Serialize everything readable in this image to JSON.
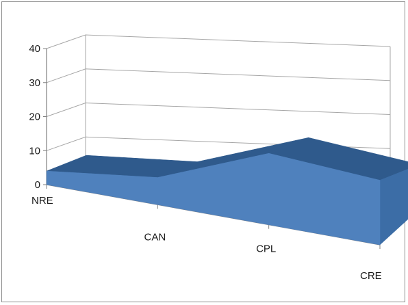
{
  "chart_data": {
    "type": "area",
    "three_d": true,
    "categories": [
      "NRE",
      "CAN",
      "CPL",
      "CRE"
    ],
    "values": [
      4,
      8,
      21,
      19
    ],
    "ylim": [
      0,
      40
    ],
    "yticks": [
      0,
      10,
      20,
      30,
      40
    ],
    "grid": true,
    "legend": "none",
    "colors": {
      "front": "#4f81bd",
      "top": "#2f5a8c",
      "side": "#3c6da6",
      "grid": "#a6a6a6",
      "axis": "#7f7f7f"
    }
  }
}
